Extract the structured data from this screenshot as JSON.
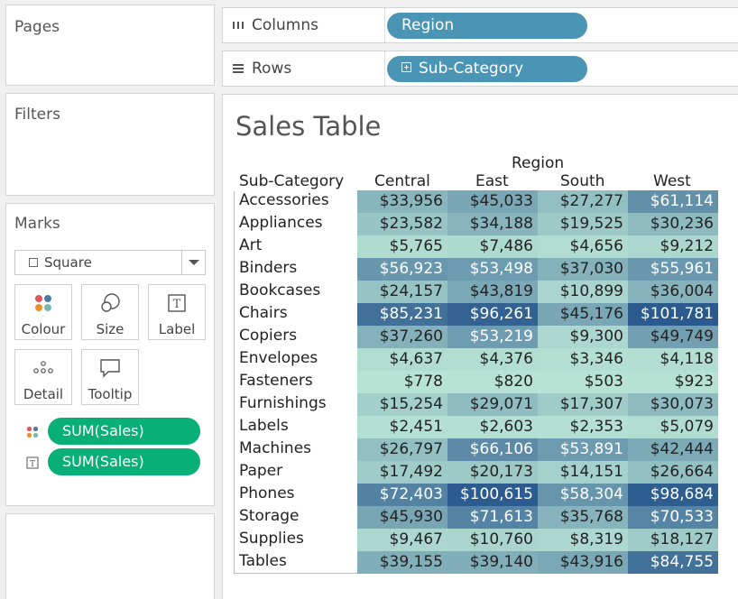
{
  "shelves": {
    "columns": {
      "label": "Columns",
      "pill": "Region"
    },
    "rows": {
      "label": "Rows",
      "pill": "Sub-Category"
    }
  },
  "cards": {
    "pages": "Pages",
    "filters": "Filters",
    "marks": {
      "title": "Marks",
      "mark_type": "Square",
      "buttons": [
        "Colour",
        "Size",
        "Label",
        "Detail",
        "Tooltip"
      ],
      "fields": [
        {
          "encoding_icon": "colour-icon",
          "label": "SUM(Sales)"
        },
        {
          "encoding_icon": "label-icon",
          "label": "SUM(Sales)"
        }
      ]
    }
  },
  "sheet": {
    "title": "Sales Table",
    "column_field_header": "Region",
    "row_field_header": "Sub-Category",
    "columns": [
      "Central",
      "East",
      "South",
      "West"
    ],
    "rows": [
      {
        "label": "Accessories",
        "values": [
          "$33,956",
          "$45,033",
          "$27,277",
          "$61,114"
        ],
        "raw": [
          33956,
          45033,
          27277,
          61114
        ]
      },
      {
        "label": "Appliances",
        "values": [
          "$23,582",
          "$34,188",
          "$19,525",
          "$30,236"
        ],
        "raw": [
          23582,
          34188,
          19525,
          30236
        ]
      },
      {
        "label": "Art",
        "values": [
          "$5,765",
          "$7,486",
          "$4,656",
          "$9,212"
        ],
        "raw": [
          5765,
          7486,
          4656,
          9212
        ]
      },
      {
        "label": "Binders",
        "values": [
          "$56,923",
          "$53,498",
          "$37,030",
          "$55,961"
        ],
        "raw": [
          56923,
          53498,
          37030,
          55961
        ]
      },
      {
        "label": "Bookcases",
        "values": [
          "$24,157",
          "$43,819",
          "$10,899",
          "$36,004"
        ],
        "raw": [
          24157,
          43819,
          10899,
          36004
        ]
      },
      {
        "label": "Chairs",
        "values": [
          "$85,231",
          "$96,261",
          "$45,176",
          "$101,781"
        ],
        "raw": [
          85231,
          96261,
          45176,
          101781
        ]
      },
      {
        "label": "Copiers",
        "values": [
          "$37,260",
          "$53,219",
          "$9,300",
          "$49,749"
        ],
        "raw": [
          37260,
          53219,
          9300,
          49749
        ]
      },
      {
        "label": "Envelopes",
        "values": [
          "$4,637",
          "$4,376",
          "$3,346",
          "$4,118"
        ],
        "raw": [
          4637,
          4376,
          3346,
          4118
        ]
      },
      {
        "label": "Fasteners",
        "values": [
          "$778",
          "$820",
          "$503",
          "$923"
        ],
        "raw": [
          778,
          820,
          503,
          923
        ]
      },
      {
        "label": "Furnishings",
        "values": [
          "$15,254",
          "$29,071",
          "$17,307",
          "$30,073"
        ],
        "raw": [
          15254,
          29071,
          17307,
          30073
        ]
      },
      {
        "label": "Labels",
        "values": [
          "$2,451",
          "$2,603",
          "$2,353",
          "$5,079"
        ],
        "raw": [
          2451,
          2603,
          2353,
          5079
        ]
      },
      {
        "label": "Machines",
        "values": [
          "$26,797",
          "$66,106",
          "$53,891",
          "$42,444"
        ],
        "raw": [
          26797,
          66106,
          53891,
          42444
        ]
      },
      {
        "label": "Paper",
        "values": [
          "$17,492",
          "$20,173",
          "$14,151",
          "$26,664"
        ],
        "raw": [
          17492,
          20173,
          14151,
          26664
        ]
      },
      {
        "label": "Phones",
        "values": [
          "$72,403",
          "$100,615",
          "$58,304",
          "$98,684"
        ],
        "raw": [
          72403,
          100615,
          58304,
          98684
        ]
      },
      {
        "label": "Storage",
        "values": [
          "$45,930",
          "$71,613",
          "$35,768",
          "$70,533"
        ],
        "raw": [
          45930,
          71613,
          35768,
          70533
        ]
      },
      {
        "label": "Supplies",
        "values": [
          "$9,467",
          "$10,760",
          "$8,319",
          "$18,127"
        ],
        "raw": [
          9467,
          10760,
          8319,
          18127
        ]
      },
      {
        "label": "Tables",
        "values": [
          "$39,155",
          "$39,140",
          "$43,916",
          "$84,755"
        ],
        "raw": [
          39155,
          39140,
          43916,
          84755
        ]
      }
    ],
    "color_scale": {
      "low": "#b7e3d4",
      "high": "#2a5a8e",
      "min": 503,
      "max": 101781
    }
  },
  "colors": {
    "dimension_pill": "#4a95b5",
    "measure_pill": "#08b077"
  }
}
